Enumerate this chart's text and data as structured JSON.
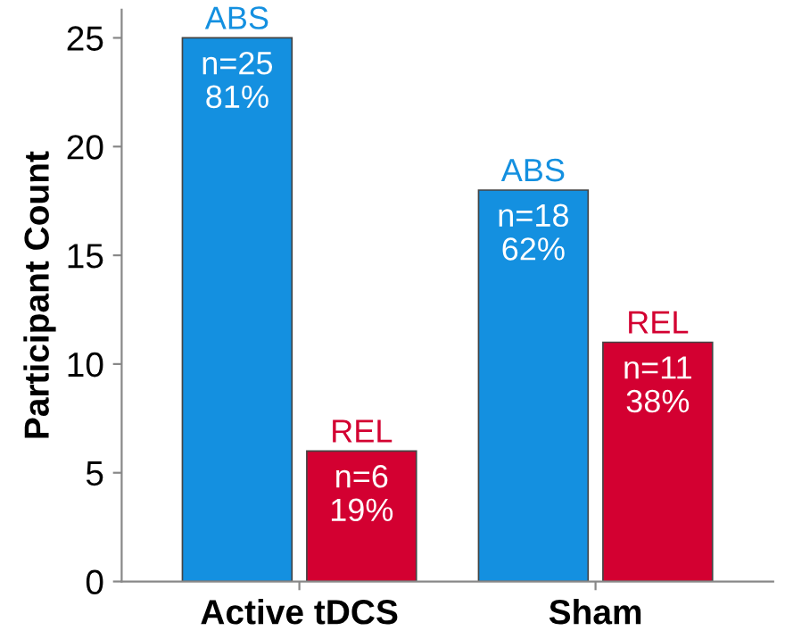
{
  "chart_data": {
    "type": "bar",
    "ylabel": "Participant Count",
    "categories": [
      "Active tDCS",
      "Sham"
    ],
    "series": [
      {
        "name": "ABS",
        "color": "#1490e0",
        "values": [
          25,
          18
        ],
        "value_labels": [
          "n=25\n81%",
          "n=18\n62%"
        ]
      },
      {
        "name": "REL",
        "color": "#d30031",
        "values": [
          6,
          11
        ],
        "value_labels": [
          "n=6\n19%",
          "n=11\n38%"
        ]
      }
    ],
    "ylim": [
      0,
      26.3
    ],
    "yticks": [
      0,
      5,
      10,
      15,
      20,
      25
    ],
    "grid": false,
    "legend": false
  }
}
